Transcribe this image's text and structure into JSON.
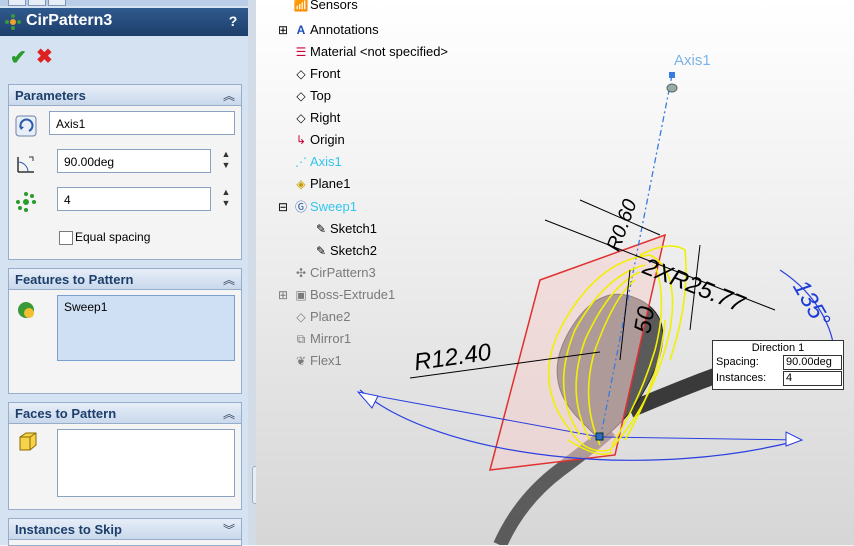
{
  "property_manager": {
    "title": "CirPattern3",
    "help": "?",
    "parameters": {
      "header": "Parameters",
      "axis_value": "Axis1",
      "angle_value": "90.00deg",
      "instances_value": "4",
      "equal_spacing_label": "Equal spacing"
    },
    "features": {
      "header": "Features to Pattern",
      "items": [
        "Sweep1"
      ]
    },
    "faces": {
      "header": "Faces to Pattern"
    },
    "skip": {
      "header": "Instances to Skip"
    }
  },
  "tree": [
    {
      "label": "Sensors",
      "icon": "sensors-icon",
      "style": "normal"
    },
    {
      "label": "Annotations",
      "icon": "annotations-icon",
      "style": "normal"
    },
    {
      "label": "Material <not specified>",
      "icon": "material-icon",
      "style": "normal"
    },
    {
      "label": "Front",
      "icon": "plane-icon",
      "style": "normal"
    },
    {
      "label": "Top",
      "icon": "plane-icon",
      "style": "normal"
    },
    {
      "label": "Right",
      "icon": "plane-icon",
      "style": "normal"
    },
    {
      "label": "Origin",
      "icon": "origin-icon",
      "style": "normal"
    },
    {
      "label": "Axis1",
      "icon": "axis-icon",
      "style": "cyan"
    },
    {
      "label": "Plane1",
      "icon": "plane-icon",
      "style": "normal"
    },
    {
      "label": "Sweep1",
      "icon": "sweep-icon",
      "style": "cyan"
    },
    {
      "label": "Sketch1",
      "icon": "sketch-icon",
      "style": "normal"
    },
    {
      "label": "Sketch2",
      "icon": "sketch-icon",
      "style": "normal"
    },
    {
      "label": "CirPattern3",
      "icon": "circular-pattern-icon",
      "style": "grey"
    },
    {
      "label": "Boss-Extrude1",
      "icon": "extrude-icon",
      "style": "grey"
    },
    {
      "label": "Plane2",
      "icon": "plane-icon",
      "style": "grey"
    },
    {
      "label": "Mirror1",
      "icon": "mirror-icon",
      "style": "grey"
    },
    {
      "label": "Flex1",
      "icon": "flex-icon",
      "style": "grey"
    }
  ],
  "viewport": {
    "axis_label": "Axis1",
    "dim_radius": "R12.40",
    "dim_radius2": "2XR25.77",
    "dim_50": "50",
    "dim_angle": "135°",
    "dim_top": "R0.60",
    "direction_box": {
      "title": "Direction 1",
      "spacing_label": "Spacing:",
      "spacing_value": "90.00deg",
      "instances_label": "Instances:",
      "instances_value": "4"
    }
  },
  "colors": {
    "accent": "#1d3f6b",
    "selection_yellow": "#f0f000",
    "cyan": "#33c6ee",
    "dim_blue": "#1e3cd6"
  }
}
